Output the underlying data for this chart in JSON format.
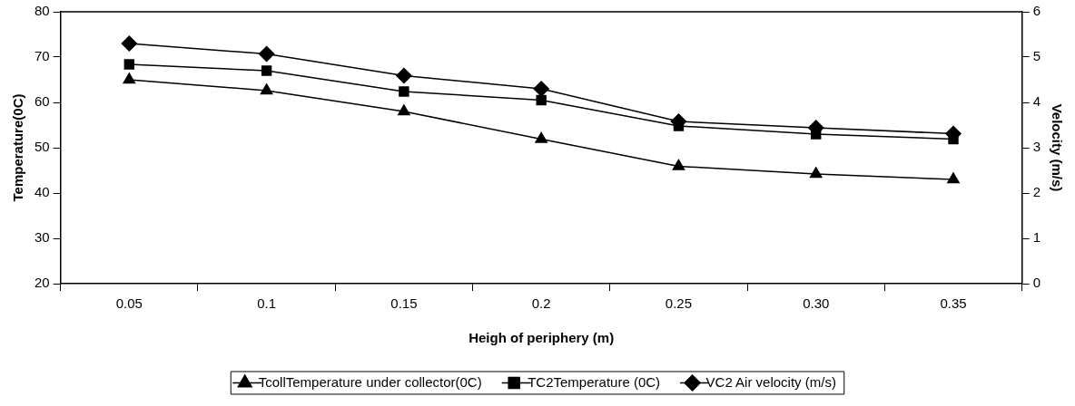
{
  "chart_data": {
    "type": "line",
    "categories": [
      "0.05",
      "0.1",
      "0.15",
      "0.2",
      "0.25",
      "0.30",
      "0.35"
    ],
    "xlabel": "Heigh of periphery (m)",
    "ylabel": "Temperature(0C)",
    "y2label": "Velocity (m/s)",
    "ylim": [
      20,
      80
    ],
    "yticks": [
      20,
      30,
      40,
      50,
      60,
      70,
      80
    ],
    "y2lim": [
      0,
      6
    ],
    "y2ticks": [
      0,
      1,
      2,
      3,
      4,
      5,
      6
    ],
    "legend": "bottom",
    "grid": false,
    "line_style": "solid",
    "series": [
      {
        "name": "TcollTemperature under collector(0C)",
        "color": "#000000",
        "marker": "triangle",
        "values": [
          65,
          62.6,
          58,
          51.9,
          45.9,
          44.2,
          43
        ]
      },
      {
        "name": "TC2Temperature (0C)",
        "color": "#000000",
        "marker": "square",
        "values": [
          68.4,
          67,
          62.4,
          60.5,
          54.8,
          53,
          51.9
        ]
      },
      {
        "name": "VC2 Air velocity (m/s)",
        "color": "#000000",
        "marker": "diamond",
        "axis": "y2",
        "values": [
          5.3,
          5.07,
          4.59,
          4.3,
          3.58,
          3.44,
          3.31
        ]
      }
    ]
  }
}
